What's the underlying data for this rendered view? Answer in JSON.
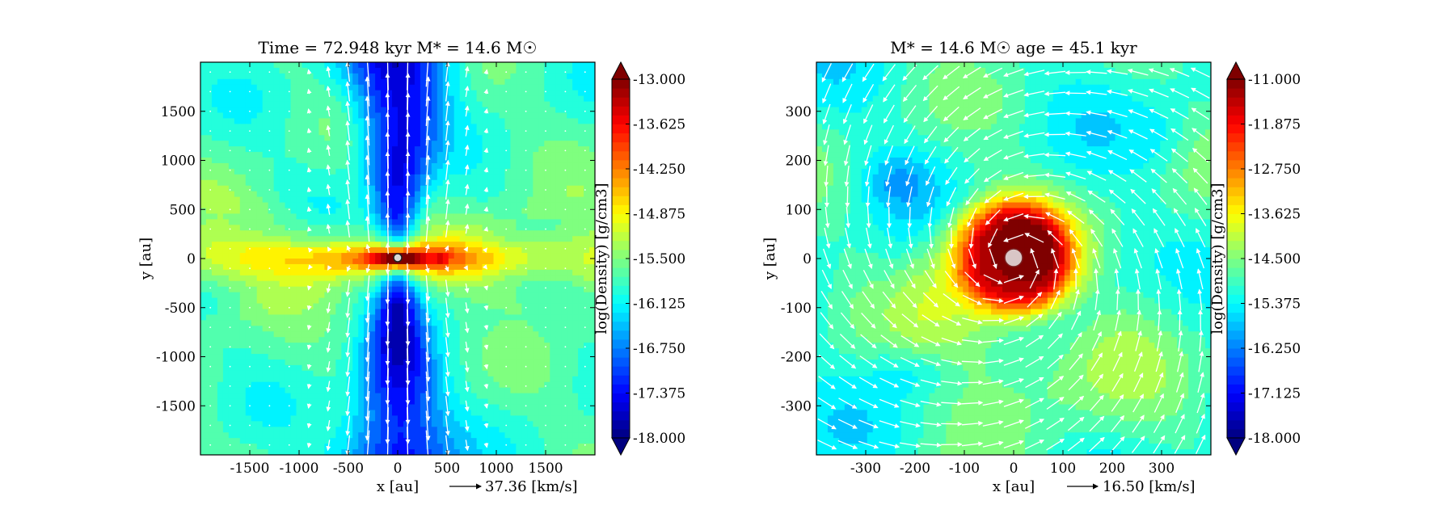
{
  "colormap": [
    "#00007f",
    "#0000ff",
    "#007fff",
    "#00ffff",
    "#7fff7f",
    "#ffff00",
    "#ff7f00",
    "#ff0000",
    "#7f0000"
  ],
  "arrow_color": "#ffffff",
  "chart_data": [
    {
      "type": "heatmap",
      "title": "Time = 72.948 kyr    M* = 14.6 M☉",
      "xlabel": "x [au]",
      "ylabel": "y [au]",
      "xlim": [
        -2000,
        2000
      ],
      "ylim": [
        -2000,
        2000
      ],
      "x_ticks": [
        -1500,
        -1000,
        -500,
        0,
        500,
        1000,
        1500
      ],
      "y_ticks": [
        -1500,
        -1000,
        -500,
        0,
        500,
        1000,
        1500
      ],
      "x_tick_labels": [
        "-1500",
        "-1000",
        "-500",
        "0",
        "500",
        "1000",
        "1500"
      ],
      "y_tick_labels": [
        "-1500",
        "-1000",
        "-500",
        "0",
        "500",
        "1000",
        "1500"
      ],
      "field": "edge-on outflow: thin dense disk along x at y≈0, low-density bipolar cavities along ±y",
      "colorbar": {
        "label": "log(Density) [g/cm3]",
        "min": -18.0,
        "max": -13.0,
        "ticks": [
          "-13.000",
          "-13.625",
          "-14.250",
          "-14.875",
          "-15.500",
          "-16.125",
          "-16.750",
          "-17.375",
          "-18.000"
        ]
      },
      "velocity_key": {
        "value": 37.36,
        "label": "37.36 [km/s]"
      }
    },
    {
      "type": "heatmap",
      "title": "M* = 14.6 M☉          age = 45.1 kyr",
      "xlabel": "x [au]",
      "ylabel": "y [au]",
      "xlim": [
        -400,
        400
      ],
      "ylim": [
        -400,
        400
      ],
      "x_ticks": [
        -300,
        -200,
        -100,
        0,
        100,
        200,
        300
      ],
      "y_ticks": [
        -300,
        -200,
        -100,
        0,
        100,
        200,
        300
      ],
      "x_tick_labels": [
        "-300",
        "-200",
        "-100",
        "0",
        "100",
        "200",
        "300"
      ],
      "y_tick_labels": [
        "-300",
        "-200",
        "-100",
        "0",
        "100",
        "200",
        "300"
      ],
      "field": "face-on disk: dense core of radius ~130 au around star, spiral arms, counter-clockwise rotating velocity field",
      "colorbar": {
        "label": "log(Density) [g/cm3]",
        "min": -18.0,
        "max": -11.0,
        "ticks": [
          "-11.000",
          "-11.875",
          "-12.750",
          "-13.625",
          "-14.500",
          "-15.375",
          "-16.250",
          "-17.125",
          "-18.000"
        ]
      },
      "velocity_key": {
        "value": 16.5,
        "label": "16.50 [km/s]"
      }
    }
  ]
}
